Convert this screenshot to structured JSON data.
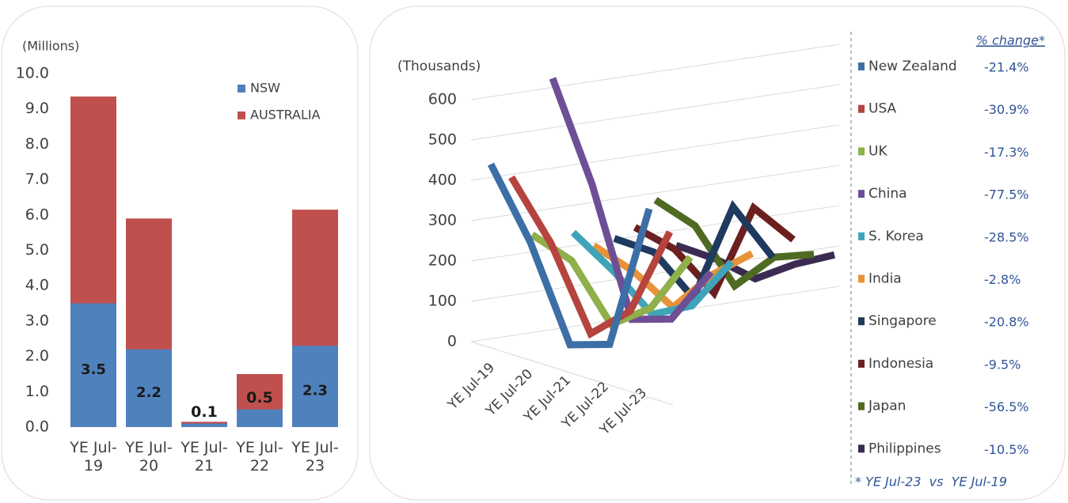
{
  "chart_data": [
    {
      "type": "bar",
      "y_label": "(Millions)",
      "categories": [
        "YE Jul-19",
        "YE Jul-20",
        "YE Jul-21",
        "YE Jul-22",
        "YE Jul-23"
      ],
      "series": [
        {
          "name": "AUSTRALIA",
          "color": "#c0504d",
          "values": [
            9.35,
            5.9,
            0.15,
            1.5,
            6.15
          ]
        },
        {
          "name": "NSW",
          "color": "#4f81bd",
          "values": [
            3.5,
            2.2,
            0.1,
            0.5,
            2.3
          ]
        }
      ],
      "ylim": [
        0,
        10
      ],
      "yticks": [
        {
          "value": 0,
          "label": "0.0"
        },
        {
          "value": 1,
          "label": "1.0"
        },
        {
          "value": 2,
          "label": "2.0"
        },
        {
          "value": 3,
          "label": "3.0"
        },
        {
          "value": 4,
          "label": "4.0"
        },
        {
          "value": 5,
          "label": "5.0"
        },
        {
          "value": 6,
          "label": "6.0"
        },
        {
          "value": 7,
          "label": "7.0"
        },
        {
          "value": 8,
          "label": "8.0"
        },
        {
          "value": 9,
          "label": "9.0"
        },
        {
          "value": 10,
          "label": "10.0"
        }
      ],
      "legend_order": [
        "NSW",
        "AUSTRALIA"
      ]
    },
    {
      "type": "line3d",
      "y_label": "(Thousands)",
      "categories": [
        "YE Jul-19",
        "YE Jul-20",
        "YE Jul-21",
        "YE Jul-22",
        "YE Jul-23"
      ],
      "change_header": "% change*",
      "footnote": "* YE Jul-23  vs  YE Jul-19",
      "series": [
        {
          "name": "New Zealand",
          "color": "#3d6fa6",
          "values": [
            440,
            250,
            0,
            5,
            345
          ],
          "change": "-21.4%"
        },
        {
          "name": "USA",
          "color": "#b5433e",
          "values": [
            390,
            230,
            10,
            70,
            270
          ],
          "change": "-30.9%"
        },
        {
          "name": "UK",
          "color": "#8fb04a",
          "values": [
            230,
            170,
            15,
            60,
            190
          ],
          "change": "-17.3%"
        },
        {
          "name": "China",
          "color": "#6e4f96",
          "values": [
            600,
            340,
            10,
            15,
            135
          ],
          "change": "-77.5%"
        },
        {
          "name": "S. Korea",
          "color": "#3fa4b8",
          "values": [
            200,
            110,
            5,
            30,
            143
          ],
          "change": "-28.5%"
        },
        {
          "name": "India",
          "color": "#e8923a",
          "values": [
            150,
            90,
            5,
            90,
            146
          ],
          "change": "-2.8%"
        },
        {
          "name": "Singapore",
          "color": "#1f3a5f",
          "values": [
            150,
            120,
            10,
            240,
            119
          ],
          "change": "-20.8%"
        },
        {
          "name": "Indonesia",
          "color": "#6b1f1f",
          "values": [
            160,
            110,
            5,
            220,
            145
          ],
          "change": "-9.5%"
        },
        {
          "name": "Japan",
          "color": "#4f6b22",
          "values": [
            210,
            150,
            5,
            80,
            91
          ],
          "change": "-56.5%"
        },
        {
          "name": "Philippines",
          "color": "#3b2b52",
          "values": [
            80,
            50,
            5,
            45,
            72
          ],
          "change": "-10.5%"
        }
      ],
      "ylim": [
        0,
        600
      ],
      "yticks": [
        0,
        100,
        200,
        300,
        400,
        500,
        600
      ],
      "grid": true
    }
  ]
}
